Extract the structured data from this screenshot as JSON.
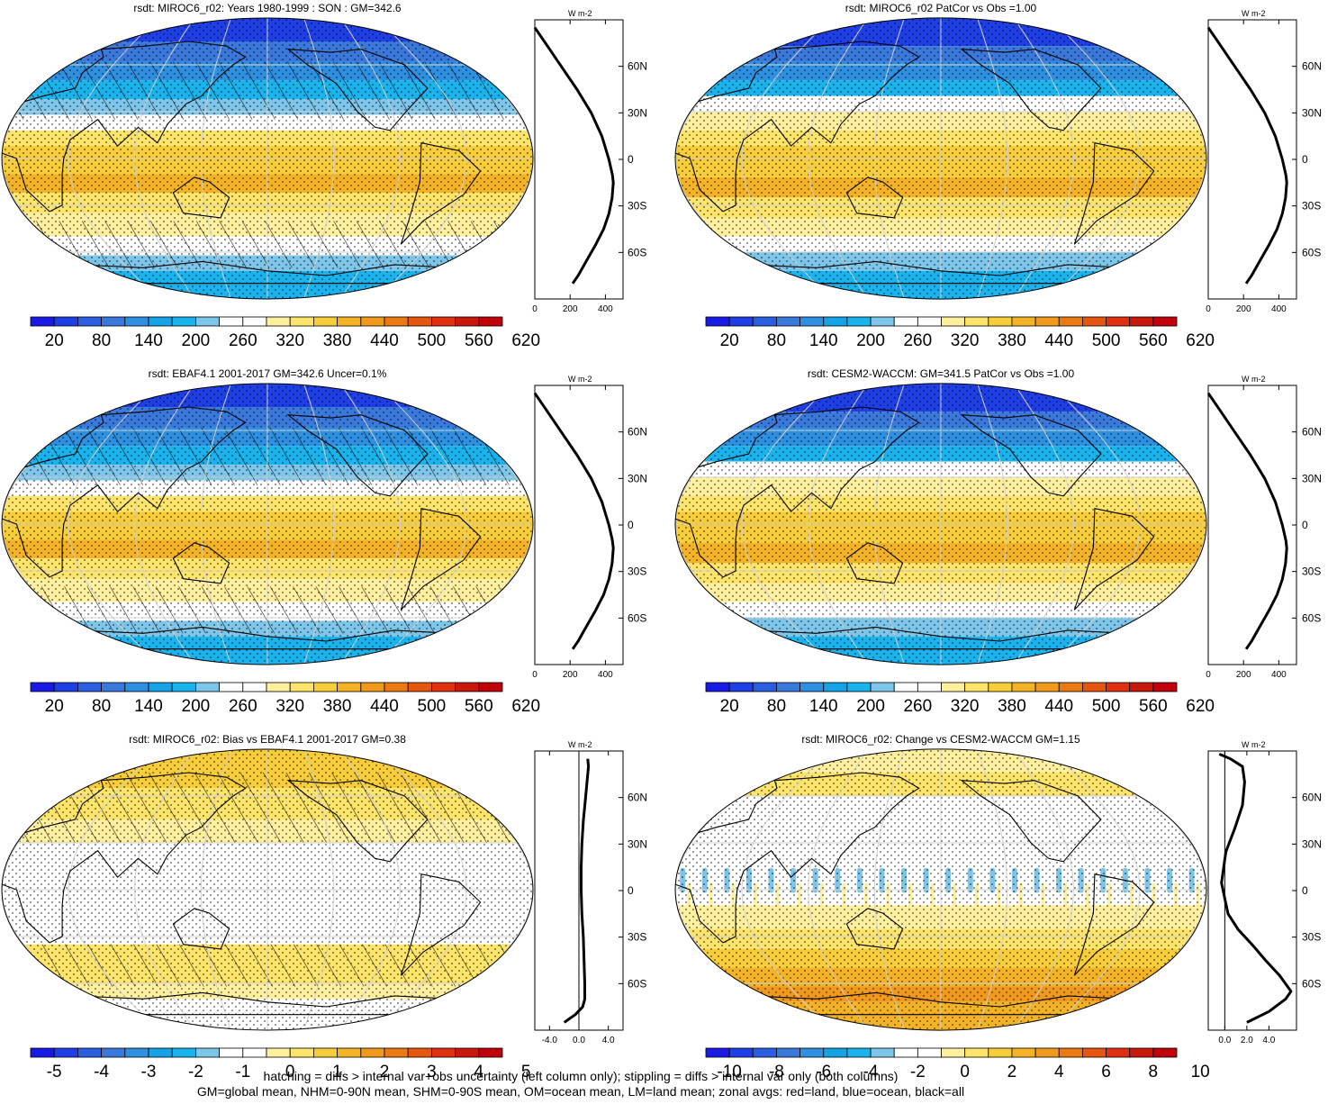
{
  "panels": [
    {
      "id": "p1",
      "title": "rsdt: MIROC6_r02: Years 1980-1999 : SON : GM=342.6"
    },
    {
      "id": "p2",
      "title": "rsdt: MIROC6_r02 PatCor vs Obs =1.00"
    },
    {
      "id": "p3",
      "title": "rsdt: EBAF4.1 2001-2017 GM=342.6 Uncer=0.1%"
    },
    {
      "id": "p4",
      "title": "rsdt: CESM2-WACCM: GM=341.5 PatCor vs Obs =1.00"
    },
    {
      "id": "p5",
      "title": "rsdt: MIROC6_r02: Bias vs EBAF4.1 2001-2017  GM=0.38"
    },
    {
      "id": "p6",
      "title": "rsdt: MIROC6_r02: Change vs CESM2-WACCM GM=1.15"
    }
  ],
  "zonal_unit_label": "W m-2",
  "lat_tick_labels": [
    "60N",
    "30N",
    "0",
    "30S",
    "60S"
  ],
  "colorbars": {
    "absolute": {
      "colors": [
        "#1a1ae6",
        "#1f3fe6",
        "#2a5ee0",
        "#3a78dc",
        "#2f8fe0",
        "#16a3e6",
        "#19b4ee",
        "#7dc6ea",
        "#ffffff",
        "#ffffff",
        "#fff0a0",
        "#fde46a",
        "#f8cd3a",
        "#f3b324",
        "#f0991a",
        "#ec7a12",
        "#e6560f",
        "#e0300f",
        "#c8180c",
        "#c0000a"
      ],
      "labels": [
        "20",
        "80",
        "140",
        "200",
        "260",
        "320",
        "380",
        "440",
        "500",
        "560",
        "620"
      ]
    },
    "bias": {
      "colors": [
        "#1a1ae6",
        "#1f3fe6",
        "#2a5ee0",
        "#3a78dc",
        "#2f8fe0",
        "#16a3e6",
        "#19b4ee",
        "#7dc6ea",
        "#ffffff",
        "#ffffff",
        "#fff0a0",
        "#fde46a",
        "#f8cd3a",
        "#f3b324",
        "#f0991a",
        "#ec7a12",
        "#e6560f",
        "#e0300f",
        "#c8180c",
        "#c0000a"
      ],
      "labels": [
        "-5",
        "-4",
        "-3",
        "-2",
        "-1",
        "0",
        "1",
        "2",
        "3",
        "4",
        "5"
      ]
    },
    "change": {
      "colors": [
        "#1a1ae6",
        "#1f3fe6",
        "#2a5ee0",
        "#3a78dc",
        "#2f8fe0",
        "#16a3e6",
        "#19b4ee",
        "#7dc6ea",
        "#ffffff",
        "#ffffff",
        "#fff0a0",
        "#fde46a",
        "#f8cd3a",
        "#f3b324",
        "#f0991a",
        "#ec7a12",
        "#e6560f",
        "#e0300f",
        "#c8180c",
        "#c0000a"
      ],
      "labels": [
        "-10",
        "-8",
        "-6",
        "-4",
        "-2",
        "0",
        "2",
        "4",
        "6",
        "8",
        "10"
      ]
    }
  },
  "footer": {
    "line1": "hatching = diffs > internal var+obs uncertainty (left column only); stippling = diffs > internal var only (both columns)",
    "line2": "GM=global mean, NHM=0-90N mean, SHM=0-90S mean, OM=ocean mean, LM=land mean; zonal avgs: red=land, blue=ocean, black=all"
  },
  "chart_data": [
    {
      "type": "line",
      "panel": "p1",
      "title": "rsdt: MIROC6_r02: Years 1980-1999 : SON : GM=342.6",
      "xlabel": "W m-2",
      "xlim": [
        0,
        500
      ],
      "xticks": [
        "0",
        "200",
        "400"
      ],
      "ylim": [
        -90,
        90
      ],
      "yticks": [
        "60N",
        "30N",
        "0",
        "30S",
        "60S"
      ],
      "grid": false,
      "series": [
        {
          "x": [
            0,
            60,
            150,
            240,
            320,
            380,
            420,
            440,
            445,
            438,
            420,
            390,
            345,
            295,
            245,
            215
          ],
          "y": [
            85,
            75,
            60,
            45,
            30,
            15,
            0,
            -10,
            -15,
            -25,
            -35,
            -45,
            -55,
            -65,
            -75,
            -80
          ]
        }
      ]
    },
    {
      "type": "line",
      "panel": "p2",
      "title": "rsdt: MIROC6_r02 PatCor vs Obs =1.00",
      "xlabel": "W m-2",
      "xlim": [
        0,
        500
      ],
      "xticks": [
        "0",
        "200",
        "400"
      ],
      "ylim": [
        -90,
        90
      ],
      "yticks": [
        "60N",
        "30N",
        "0",
        "30S",
        "60S"
      ],
      "grid": false,
      "series": [
        {
          "x": [
            0,
            60,
            150,
            240,
            320,
            380,
            420,
            440,
            445,
            438,
            420,
            390,
            345,
            295,
            245,
            215
          ],
          "y": [
            85,
            75,
            60,
            45,
            30,
            15,
            0,
            -10,
            -15,
            -25,
            -35,
            -45,
            -55,
            -65,
            -75,
            -80
          ]
        }
      ]
    },
    {
      "type": "line",
      "panel": "p3",
      "title": "rsdt: EBAF4.1 2001-2017 GM=342.6 Uncer=0.1%",
      "xlabel": "W m-2",
      "xlim": [
        0,
        500
      ],
      "xticks": [
        "0",
        "200",
        "400"
      ],
      "ylim": [
        -90,
        90
      ],
      "yticks": [
        "60N",
        "30N",
        "0",
        "30S",
        "60S"
      ],
      "grid": false,
      "series": [
        {
          "x": [
            0,
            60,
            150,
            240,
            320,
            380,
            420,
            440,
            445,
            438,
            420,
            390,
            345,
            295,
            245,
            215
          ],
          "y": [
            85,
            75,
            60,
            45,
            30,
            15,
            0,
            -10,
            -15,
            -25,
            -35,
            -45,
            -55,
            -65,
            -75,
            -80
          ]
        }
      ]
    },
    {
      "type": "line",
      "panel": "p4",
      "title": "rsdt: CESM2-WACCM: GM=341.5 PatCor vs Obs =1.00",
      "xlabel": "W m-2",
      "xlim": [
        0,
        500
      ],
      "xticks": [
        "0",
        "200",
        "400"
      ],
      "ylim": [
        -90,
        90
      ],
      "yticks": [
        "60N",
        "30N",
        "0",
        "30S",
        "60S"
      ],
      "grid": false,
      "series": [
        {
          "x": [
            0,
            60,
            150,
            240,
            320,
            380,
            420,
            440,
            445,
            438,
            420,
            390,
            345,
            295,
            245,
            215
          ],
          "y": [
            85,
            75,
            60,
            45,
            30,
            15,
            0,
            -10,
            -15,
            -25,
            -35,
            -45,
            -55,
            -65,
            -75,
            -80
          ]
        }
      ]
    },
    {
      "type": "line",
      "panel": "p5",
      "title": "rsdt: MIROC6_r02: Bias vs EBAF4.1 2001-2017  GM=0.38",
      "xlabel": "W m-2",
      "xlim": [
        -6,
        6
      ],
      "xticks": [
        "-4.0",
        "0.0",
        "4.0"
      ],
      "ylim": [
        -90,
        90
      ],
      "yticks": [
        "60N",
        "30N",
        "0",
        "30S",
        "60S"
      ],
      "grid": false,
      "series": [
        {
          "x": [
            1.2,
            1.3,
            1.1,
            0.9,
            0.6,
            0.4,
            0.3,
            0.3,
            0.4,
            0.6,
            0.7,
            0.8,
            0.8,
            0.5,
            -0.5,
            -2.0
          ],
          "y": [
            85,
            80,
            70,
            60,
            45,
            30,
            15,
            0,
            -15,
            -30,
            -45,
            -60,
            -70,
            -75,
            -80,
            -85
          ]
        }
      ]
    },
    {
      "type": "line",
      "panel": "p6",
      "title": "rsdt: MIROC6_r02: Change vs CESM2-WACCM GM=1.15",
      "xlabel": "W m-2",
      "xlim": [
        -1.5,
        6.5
      ],
      "xticks": [
        "0.0",
        "2.0",
        "4.0"
      ],
      "ylim": [
        -90,
        90
      ],
      "yticks": [
        "60N",
        "30N",
        "0",
        "30S",
        "60S"
      ],
      "grid": false,
      "series": [
        {
          "x": [
            -0.5,
            0.5,
            1.6,
            1.8,
            1.6,
            0.9,
            0.1,
            -0.3,
            0.3,
            1.2,
            2.5,
            3.7,
            5.0,
            6.0,
            5.5,
            4.0,
            2.0
          ],
          "y": [
            88,
            85,
            80,
            70,
            55,
            40,
            25,
            5,
            -15,
            -25,
            -35,
            -45,
            -55,
            -65,
            -70,
            -78,
            -85
          ]
        }
      ]
    }
  ]
}
